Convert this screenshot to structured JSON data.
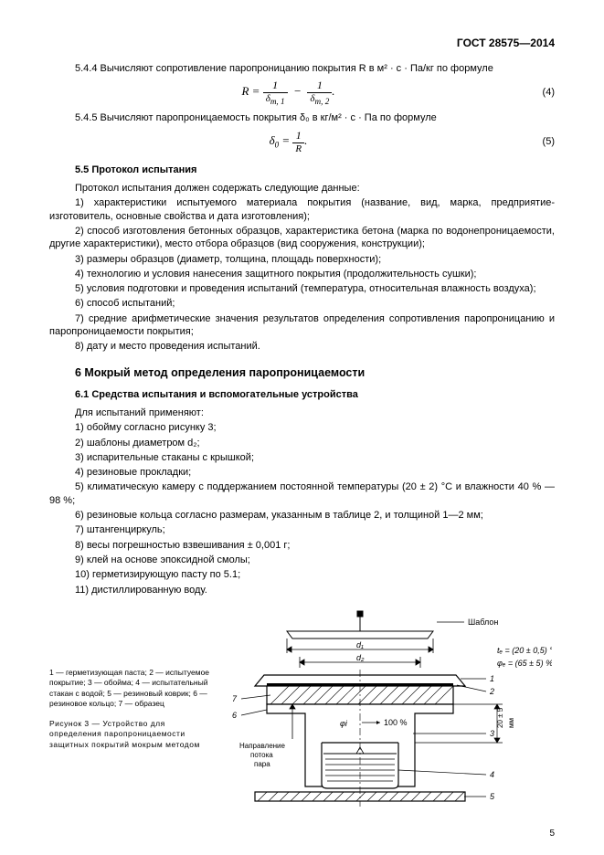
{
  "header": "ГОСТ 28575—2014",
  "p544": "5.4.4  Вычисляют сопротивление паропроницанию покрытия R в м² · с · Па/кг по формуле",
  "formula4": {
    "lhs": "R =",
    "t1n": "1",
    "t1d": "δ_{m, 1}",
    "t2n": "1",
    "t2d": "δ_{m, 2}",
    "num": "(4)"
  },
  "p545": "5.4.5  Вычисляют паропроницаемость покрытия δ₀ в кг/м² · с · Па по формуле",
  "formula5": {
    "lhs": "δ₀ =",
    "tn": "1",
    "td": "R",
    "num": "(5)"
  },
  "s55": "5.5  Протокол испытания",
  "s55_intro": "Протокол испытания должен содержать следующие данные:",
  "s55_items": [
    "1)  характеристики испытуемого материала покрытия (название, вид, марка, предприятие-изготовитель, основные свойства и дата изготовления);",
    "2)  способ изготовления бетонных образцов, характеристика бетона (марка по водонепроницаемости, другие характеристики), место отбора образцов (вид сооружения, конструкции);",
    "3)  размеры образцов (диаметр, толщина, площадь поверхности);",
    "4)  технологию и условия нанесения защитного покрытия (продолжительность сушки);",
    "5)  условия подготовки и проведения испытаний (температура, относительная влажность воздуха);",
    "6)  способ испытаний;",
    "7)  средние арифметические значения результатов определения сопротивления паропроницанию и паропроницаемости покрытия;",
    "8)  дату и место проведения испытаний."
  ],
  "h6": "6  Мокрый метод определения паропроницаемости",
  "s61": "6.1  Средства испытания и вспомогательные устройства",
  "s61_intro": "Для испытаний применяют:",
  "s61_items": [
    "1)  обойму согласно рисунку 3;",
    "2)  шаблоны диаметром d₂;",
    "3)  испарительные стаканы с крышкой;",
    "4)  резиновые прокладки;",
    "5)  климатическую камеру с поддержанием постоянной температуры (20 ± 2) °С и влажности 40 % — 98 %;",
    "6)  резиновые кольца согласно размерам, указанным в таблице 2, и толщиной 1—2 мм;",
    "7)  штангенциркуль;",
    "8)  весы погрешностью взвешивания ± 0,001 г;",
    "9)  клей на основе эпоксидной смолы;",
    "10)  герметизирующую пасту по 5.1;",
    "11)  дистиллированную воду."
  ],
  "figure": {
    "legend": "1 — герметизующая паста; 2 — испытуемое покрытие; 3 — обойма; 4 — испытательный стакан с водой; 5 — резиновый коврик; 6 — резиновое кольцо; 7 — образец",
    "title": "Рисунок 3 — Устройство для определения паропроницаемости защитных покрытий мокрым методом",
    "labels": {
      "shablon": "Шаблон",
      "d1": "d₁",
      "d2": "d₂",
      "te": "tₑ = (20 ± 0,5) °C",
      "phie": "φₑ = (65 ± 5) %",
      "phi_i": "φi",
      "hundred": "100 %",
      "flow1": "Направление",
      "flow2": "потока",
      "flow3": "пара",
      "dim": "20 ± 5",
      "mm": "мм"
    },
    "callouts": [
      "1",
      "2",
      "3",
      "4",
      "5",
      "6",
      "7"
    ],
    "colors": {
      "stroke": "#000000",
      "hatch": "#000000",
      "fill": "#ffffff",
      "water": "#000000"
    }
  },
  "page_number": "5"
}
